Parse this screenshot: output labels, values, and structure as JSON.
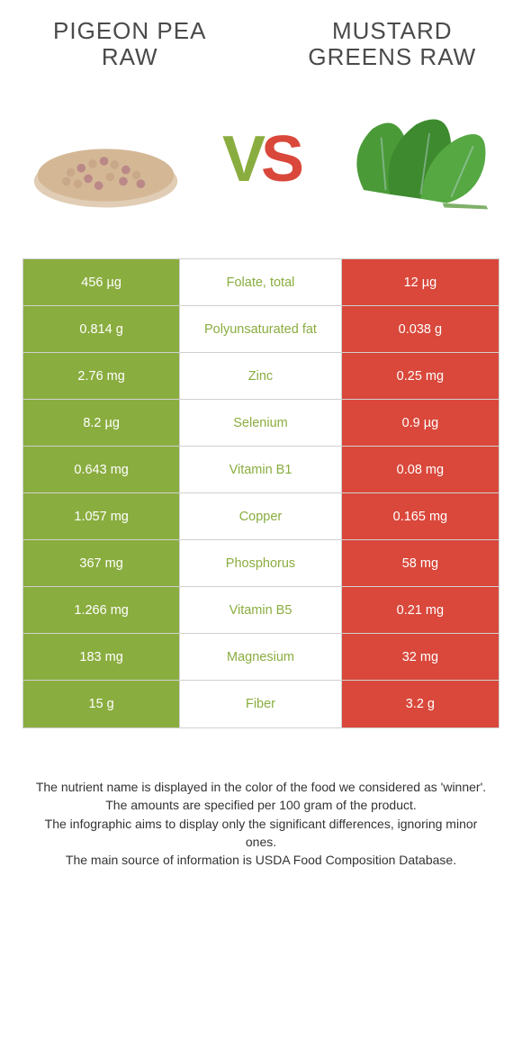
{
  "colors": {
    "left_bg": "#8aad3f",
    "right_bg": "#d9483b",
    "mid_text_left": "#8aad3f",
    "mid_text_right": "#d9483b",
    "page_bg": "#ffffff",
    "border": "#d0d0d0"
  },
  "titles": {
    "left": "PIGEON PEA RAW",
    "right": "MUSTARD GREENS RAW"
  },
  "vs_label": {
    "v": "V",
    "s": "S"
  },
  "rows": [
    {
      "left": "456 µg",
      "nutrient": "Folate, total",
      "right": "12 µg",
      "winner": "left"
    },
    {
      "left": "0.814 g",
      "nutrient": "Polyunsaturated fat",
      "right": "0.038 g",
      "winner": "left"
    },
    {
      "left": "2.76 mg",
      "nutrient": "Zinc",
      "right": "0.25 mg",
      "winner": "left"
    },
    {
      "left": "8.2 µg",
      "nutrient": "Selenium",
      "right": "0.9 µg",
      "winner": "left"
    },
    {
      "left": "0.643 mg",
      "nutrient": "Vitamin B1",
      "right": "0.08 mg",
      "winner": "left"
    },
    {
      "left": "1.057 mg",
      "nutrient": "Copper",
      "right": "0.165 mg",
      "winner": "left"
    },
    {
      "left": "367 mg",
      "nutrient": "Phosphorus",
      "right": "58 mg",
      "winner": "left"
    },
    {
      "left": "1.266 mg",
      "nutrient": "Vitamin B5",
      "right": "0.21 mg",
      "winner": "left"
    },
    {
      "left": "183 mg",
      "nutrient": "Magnesium",
      "right": "32 mg",
      "winner": "left"
    },
    {
      "left": "15 g",
      "nutrient": "Fiber",
      "right": "3.2 g",
      "winner": "left"
    }
  ],
  "footer": {
    "line1": "The nutrient name is displayed in the color of the food we considered as 'winner'.",
    "line2": "The amounts are specified per 100 gram of the product.",
    "line3": "The infographic aims to display only the significant differences, ignoring minor ones.",
    "line4": "The main source of information is USDA Food Composition Database."
  }
}
